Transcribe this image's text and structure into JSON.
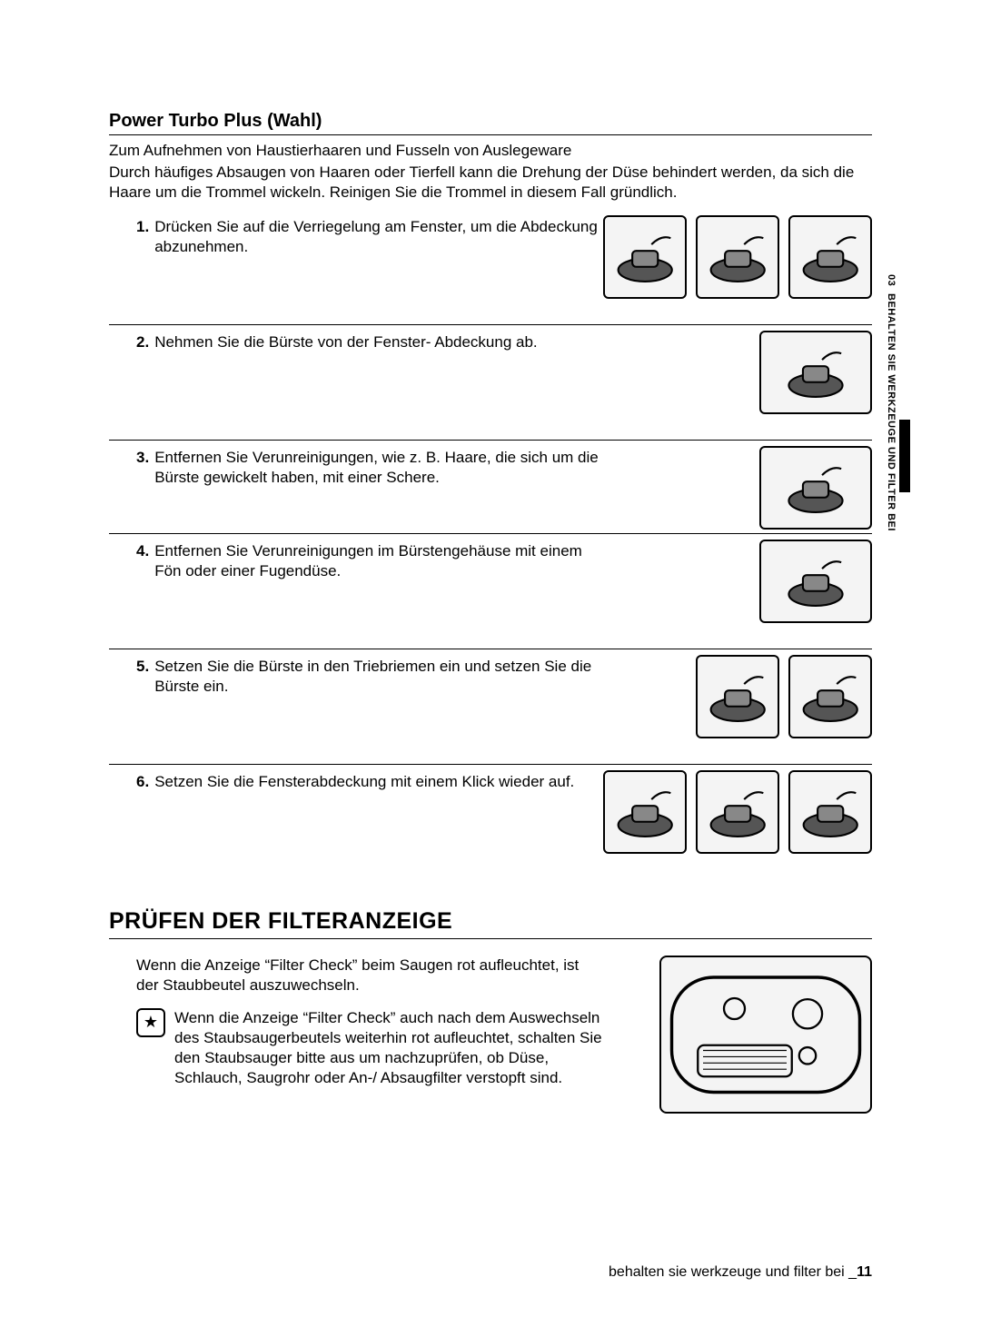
{
  "sideTab": {
    "num": "03",
    "label": "BEHALTEN SIE WERKZEUGE UND FILTER BEI"
  },
  "section1": {
    "title": "Power Turbo Plus (Wahl)",
    "intro1": "Zum Aufnehmen von Haustierhaaren und Fusseln von Auslegeware",
    "intro2": "Durch häufiges Absaugen von Haaren oder Tierfell kann die Drehung der Düse behindert werden, da sich die Haare um die Trommel wickeln. Reinigen Sie die Trommel in diesem Fall gründlich.",
    "steps": [
      {
        "n": "1.",
        "t": "Drücken Sie auf die Verriegelung am Fenster, um die Abdeckung abzunehmen.",
        "imgs": 3
      },
      {
        "n": "2.",
        "t": "Nehmen Sie die Bürste von der Fenster- Abdeckung ab.",
        "imgs": 1,
        "wide": true
      },
      {
        "n": "3.",
        "t": "Entfernen Sie Verunreinigungen, wie z. B. Haare, die sich um die Bürste gewickelt haben, mit einer Schere.",
        "imgs": 1,
        "wide": true,
        "short": true
      },
      {
        "n": "4.",
        "t": "Entfernen Sie Verunreinigungen im Bürstengehäuse mit einem Fön oder einer Fugendüse.",
        "imgs": 1,
        "wide": true
      },
      {
        "n": "5.",
        "t": "Setzen Sie die Bürste in den Triebriemen ein und setzen Sie die Bürste ein.",
        "imgs": 2
      },
      {
        "n": "6.",
        "t": "Setzen Sie die Fensterabdeckung mit einem Klick wieder auf.",
        "imgs": 3
      }
    ]
  },
  "section2": {
    "title": "PRÜFEN DER FILTERANZEIGE",
    "p1": "Wenn die Anzeige “Filter Check” beim Saugen rot aufleuchtet, ist der Staubbeutel auszuwechseln.",
    "p2": "Wenn die Anzeige “Filter Check” auch nach dem Auswechseln des Staubsaugerbeutels weiterhin rot aufleuchtet, schalten Sie den Staubsauger bitte aus um nachzuprüfen, ob Düse, Schlauch, Saugrohr oder An-/ Absaugfilter verstopft sind."
  },
  "footer": {
    "text": "behalten sie werkzeuge und filter bei _",
    "page": "11"
  }
}
